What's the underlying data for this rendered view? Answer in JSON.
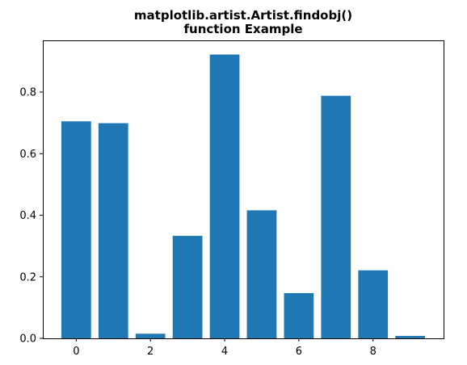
{
  "chart_data": {
    "type": "bar",
    "title_lines": [
      "matplotlib.artist.Artist.findobj()",
      "function Example"
    ],
    "categories": [
      0,
      1,
      2,
      3,
      4,
      5,
      6,
      7,
      8,
      9
    ],
    "values": [
      0.705,
      0.699,
      0.015,
      0.333,
      0.922,
      0.416,
      0.147,
      0.788,
      0.221,
      0.008
    ],
    "xlabel": "",
    "ylabel": "",
    "xlim": [
      -0.9,
      9.9
    ],
    "ylim": [
      0,
      0.968
    ],
    "xticks": [
      0,
      2,
      4,
      6,
      8
    ],
    "yticks": [
      0.0,
      0.2,
      0.4,
      0.6,
      0.8
    ],
    "bar_color": "#1f77b4",
    "grid": false
  }
}
